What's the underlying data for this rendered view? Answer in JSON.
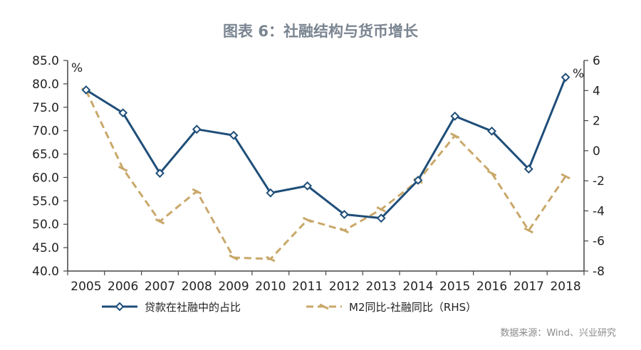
{
  "title": "图表 6：社融结构与货币增长",
  "source": "数据来源：Wind、兴业研究",
  "colors": {
    "series1": "#1f4e79",
    "series2": "#c9a86a",
    "title": "#7a8591"
  },
  "chart_data": {
    "type": "line",
    "title": "图表 6：社融结构与货币增长",
    "x": [
      "2005",
      "2006",
      "2007",
      "2008",
      "2009",
      "2010",
      "2011",
      "2012",
      "2013",
      "2014",
      "2015",
      "2016",
      "2017",
      "2018"
    ],
    "ylabel_left": "%",
    "ylabel_right": "%",
    "ylim_left": [
      40,
      85
    ],
    "yticks_left": [
      "40.0",
      "45.0",
      "50.0",
      "55.0",
      "60.0",
      "65.0",
      "70.0",
      "75.0",
      "80.0",
      "85.0"
    ],
    "ylim_right": [
      -8,
      6
    ],
    "yticks_right": [
      "-8",
      "-6",
      "-4",
      "-2",
      "0",
      "2",
      "4",
      "6"
    ],
    "grid": false,
    "legend_position": "bottom",
    "series": [
      {
        "name": "贷款在社融中的占比",
        "axis": "left",
        "style": "solid-marker-diamond",
        "values": [
          78.7,
          73.8,
          60.9,
          70.3,
          69.0,
          56.7,
          58.2,
          52.1,
          51.3,
          59.4,
          73.1,
          69.9,
          61.8,
          81.4
        ]
      },
      {
        "name": "M2同比-社融同比（RHS）",
        "axis": "right",
        "style": "dashed-marker-dash",
        "values": [
          4.0,
          -1.2,
          -4.7,
          -2.7,
          -7.1,
          -7.2,
          -4.6,
          -5.3,
          -3.9,
          -2.0,
          1.0,
          -1.5,
          -5.3,
          -1.7
        ]
      }
    ]
  }
}
